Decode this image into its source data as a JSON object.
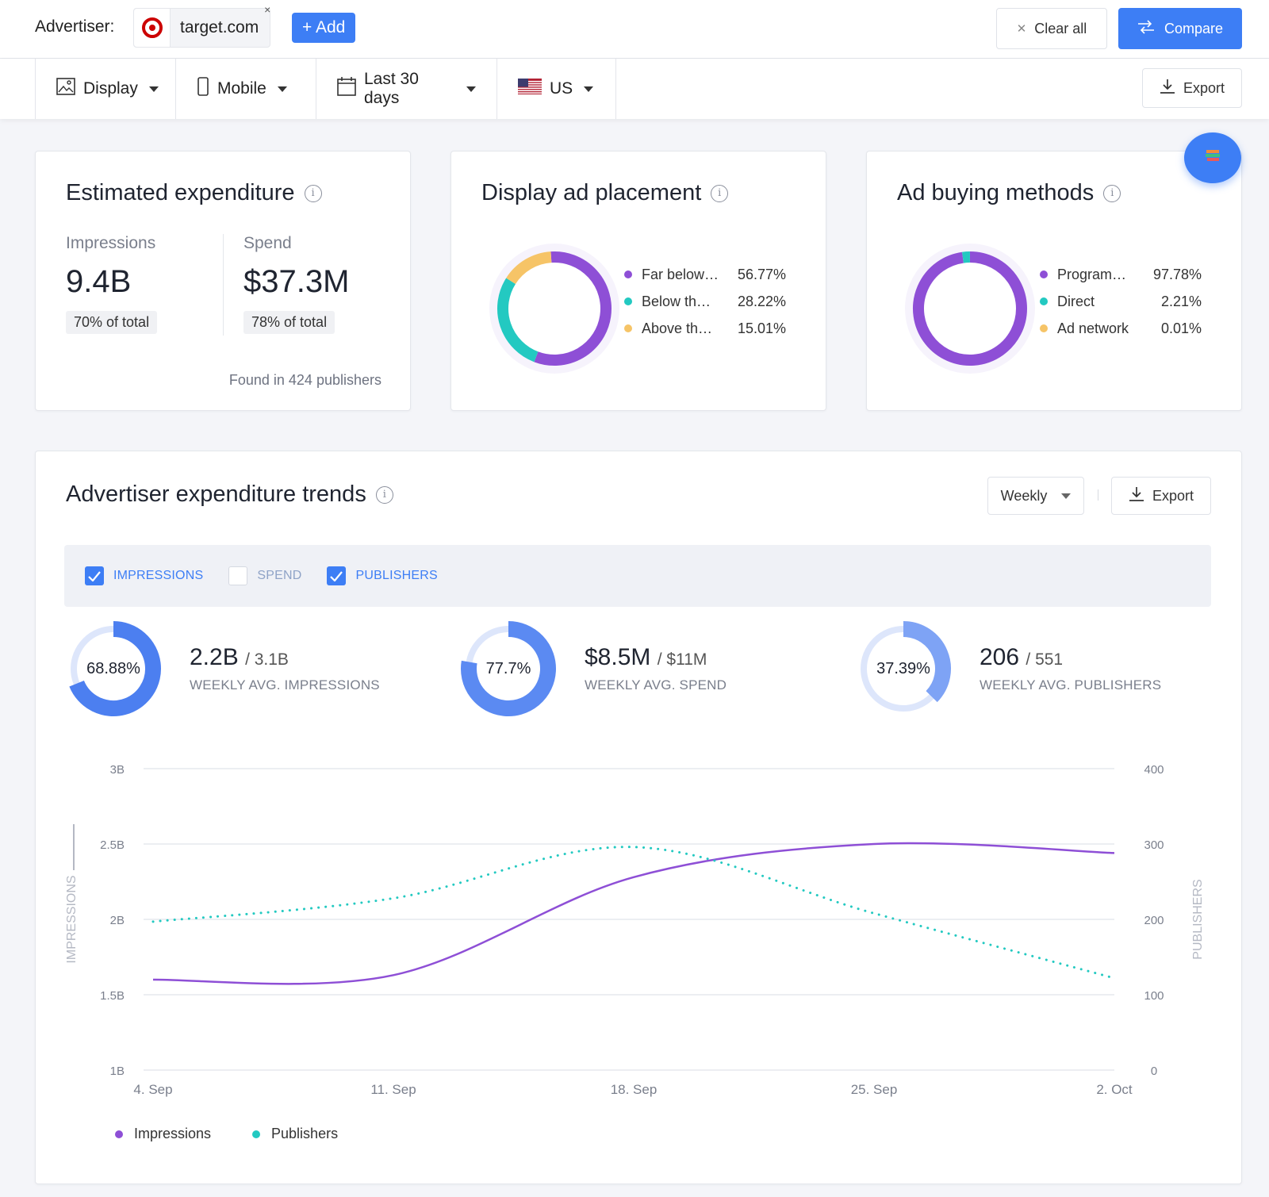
{
  "advertiser": {
    "label": "Advertiser:",
    "domain": "target.com",
    "remove_glyph": "×",
    "add_label": "+ Add",
    "clear_label": "Clear all",
    "compare_label": "Compare",
    "brand_color": "#cc0000"
  },
  "filters": {
    "ad_type": "Display",
    "device": "Mobile",
    "period": "Last 30 days",
    "country": "US",
    "export_label": "Export"
  },
  "expenditure": {
    "title": "Estimated expenditure",
    "impressions_label": "Impressions",
    "impressions_value": "9.4B",
    "impressions_share": "70% of total",
    "spend_label": "Spend",
    "spend_value": "$37.3M",
    "spend_share": "78% of total",
    "found_text": "Found in 424 publishers"
  },
  "placement": {
    "title": "Display ad placement",
    "items": [
      {
        "label": "Far below…",
        "value": "56.77%",
        "pct": 56.77,
        "color": "#8e4fd6"
      },
      {
        "label": "Below th…",
        "value": "28.22%",
        "pct": 28.22,
        "color": "#23c9c1"
      },
      {
        "label": "Above th…",
        "value": "15.01%",
        "pct": 15.01,
        "color": "#f6c467"
      }
    ]
  },
  "buying": {
    "title": "Ad buying methods",
    "items": [
      {
        "label": "Program…",
        "value": "97.78%",
        "pct": 97.78,
        "color": "#8e4fd6"
      },
      {
        "label": "Direct",
        "value": "2.21%",
        "pct": 2.21,
        "color": "#23c9c1"
      },
      {
        "label": "Ad network",
        "value": "0.01%",
        "pct": 0.01,
        "color": "#f6c467"
      }
    ]
  },
  "trends": {
    "title": "Advertiser expenditure trends",
    "period_select": "Weekly",
    "export_label": "Export",
    "toggles": [
      {
        "label": "IMPRESSIONS",
        "checked": true
      },
      {
        "label": "SPEND",
        "checked": false
      },
      {
        "label": "PUBLISHERS",
        "checked": true
      }
    ],
    "kpis": [
      {
        "pct_label": "68.88%",
        "pct": 68.88,
        "value": "2.2B",
        "total": "/ 3.1B",
        "caption": "WEEKLY AVG. IMPRESSIONS",
        "color": "#4c7ff0"
      },
      {
        "pct_label": "77.7%",
        "pct": 77.7,
        "value": "$8.5M",
        "total": "/ $11M",
        "caption": "WEEKLY AVG. SPEND",
        "color": "#5b8af2"
      },
      {
        "pct_label": "37.39%",
        "pct": 37.39,
        "value": "206",
        "total": "/ 551",
        "caption": "WEEKLY AVG. PUBLISHERS",
        "color": "#7ea3f5"
      }
    ]
  },
  "chart_data": {
    "type": "line",
    "x": [
      "4. Sep",
      "11. Sep",
      "18. Sep",
      "25. Sep",
      "2. Oct"
    ],
    "series": [
      {
        "name": "Impressions",
        "axis": "left",
        "color": "#8e4fd6",
        "style": "solid",
        "values": [
          1.6,
          1.63,
          2.28,
          2.5,
          2.44
        ]
      },
      {
        "name": "Publishers",
        "axis": "right",
        "color": "#23c9c1",
        "style": "dotted",
        "values": [
          197,
          228,
          296,
          208,
          122
        ]
      }
    ],
    "ylabel_left": "IMPRESSIONS",
    "ylabel_right": "PUBLISHERS",
    "y_left_ticks": [
      "1B",
      "1.5B",
      "2B",
      "2.5B",
      "3B"
    ],
    "y_right_ticks": [
      "0",
      "100",
      "200",
      "300",
      "400"
    ],
    "ylim_left": [
      1,
      3
    ],
    "ylim_right": [
      0,
      400
    ],
    "grid": true,
    "legend_position": "bottom-left"
  }
}
